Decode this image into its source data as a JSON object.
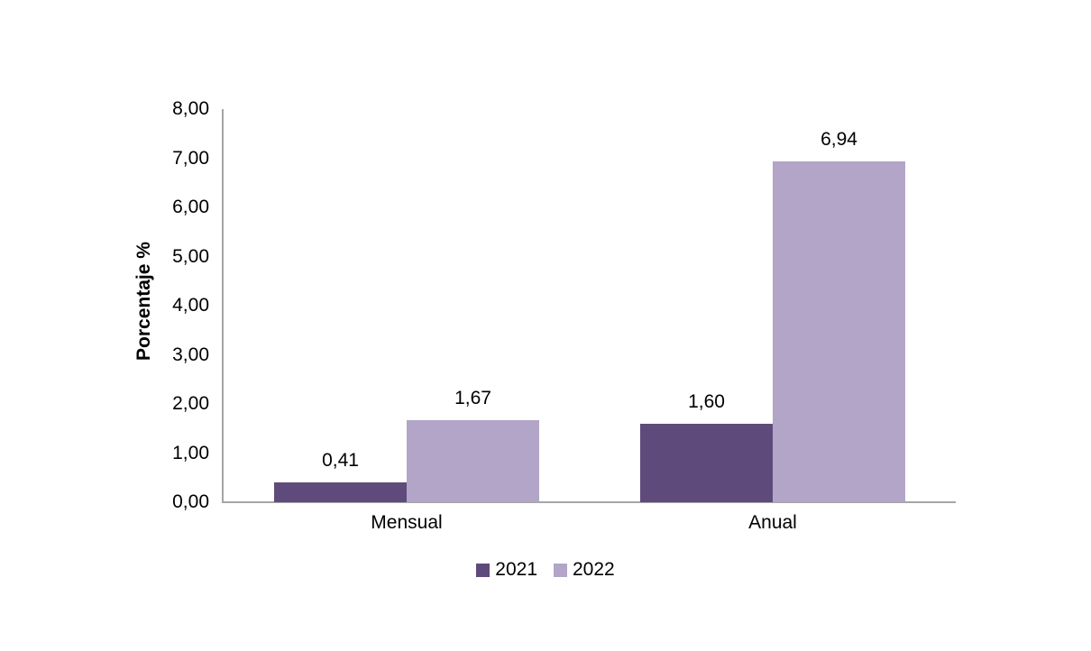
{
  "chart_data": {
    "type": "bar",
    "title": "",
    "xlabel": "",
    "ylabel": "Porcentaje %",
    "categories": [
      "Mensual",
      "Anual"
    ],
    "series": [
      {
        "name": "2021",
        "color": "#5f4b7b",
        "values": [
          0.41,
          1.6
        ],
        "value_labels": [
          "0,41",
          "1,60"
        ]
      },
      {
        "name": "2022",
        "color": "#b2a5c7",
        "values": [
          1.67,
          6.94
        ],
        "value_labels": [
          "1,67",
          "6,94"
        ]
      }
    ],
    "ylim": [
      0,
      8
    ],
    "ytick_step": 1,
    "ytick_labels": [
      "0,00",
      "1,00",
      "2,00",
      "3,00",
      "4,00",
      "5,00",
      "6,00",
      "7,00",
      "8,00"
    ],
    "grid": false,
    "legend_position": "bottom",
    "decimal_separator": ","
  },
  "colors": {
    "background": "#ffffff",
    "axis_line": "#a6a6a6",
    "text": "#000000",
    "series_2021": "#5f4b7b",
    "series_2022": "#b2a5c7"
  }
}
